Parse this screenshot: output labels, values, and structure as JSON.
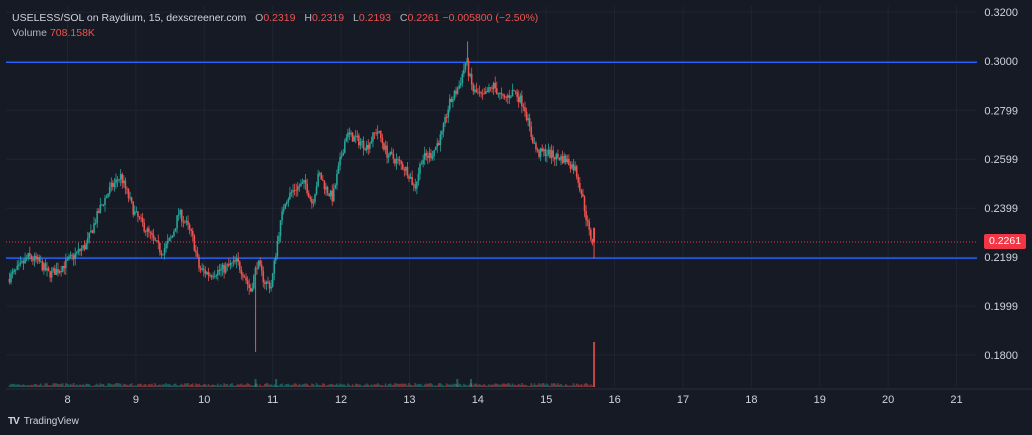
{
  "header": {
    "symbol_line": "USELESS/SOL on Raydium, 15, dexscreener.com",
    "o_label": "O",
    "o_value": "0.2319",
    "h_label": "H",
    "h_value": "0.2319",
    "l_label": "L",
    "l_value": "0.2193",
    "c_label": "C",
    "c_value": "0.2261",
    "change": "−0.005800 (−2.50%)",
    "volume_label": "Volume",
    "volume_value": "708.158K"
  },
  "brand": {
    "logo": "TV",
    "name": "TradingView"
  },
  "colors": {
    "background": "#161a25",
    "up": "#26a69a",
    "down": "#ef5350",
    "level_line": "#2962ff",
    "price_line": "#f23645",
    "grid": "#1f2433",
    "axis_text": "#d1d4dc"
  },
  "chart_data": {
    "type": "candlestick",
    "y_ticks": [
      "0.3200",
      "0.3000",
      "0.2799",
      "0.2599",
      "0.2399",
      "0.2199",
      "0.1999",
      "0.1800"
    ],
    "ylim": [
      0.1685,
      0.3225
    ],
    "x_ticks": [
      "8",
      "9",
      "10",
      "11",
      "12",
      "13",
      "14",
      "15",
      "16",
      "17",
      "18",
      "19",
      "20",
      "21"
    ],
    "xlim": [
      7.1,
      21.3
    ],
    "last_price": "0.2261",
    "horizontal_levels": [
      0.2995,
      0.2195
    ],
    "last_candle": {
      "o": 0.2319,
      "h": 0.2319,
      "l": 0.2193,
      "c": 0.2261
    },
    "close_path": [
      [
        7.15,
        0.211
      ],
      [
        7.3,
        0.215
      ],
      [
        7.45,
        0.22
      ],
      [
        7.6,
        0.218
      ],
      [
        7.75,
        0.213
      ],
      [
        7.9,
        0.215
      ],
      [
        8.1,
        0.22
      ],
      [
        8.3,
        0.225
      ],
      [
        8.5,
        0.24
      ],
      [
        8.65,
        0.248
      ],
      [
        8.8,
        0.253
      ],
      [
        9.0,
        0.238
      ],
      [
        9.2,
        0.23
      ],
      [
        9.4,
        0.222
      ],
      [
        9.55,
        0.228
      ],
      [
        9.65,
        0.238
      ],
      [
        9.75,
        0.234
      ],
      [
        9.85,
        0.228
      ],
      [
        9.95,
        0.215
      ],
      [
        10.1,
        0.213
      ],
      [
        10.3,
        0.215
      ],
      [
        10.5,
        0.218
      ],
      [
        10.6,
        0.213
      ],
      [
        10.7,
        0.206
      ],
      [
        10.8,
        0.218
      ],
      [
        10.9,
        0.21
      ],
      [
        11.0,
        0.208
      ],
      [
        11.1,
        0.228
      ],
      [
        11.2,
        0.243
      ],
      [
        11.35,
        0.248
      ],
      [
        11.5,
        0.25
      ],
      [
        11.6,
        0.242
      ],
      [
        11.7,
        0.254
      ],
      [
        11.8,
        0.248
      ],
      [
        11.9,
        0.244
      ],
      [
        12.0,
        0.258
      ],
      [
        12.1,
        0.27
      ],
      [
        12.25,
        0.268
      ],
      [
        12.4,
        0.265
      ],
      [
        12.55,
        0.272
      ],
      [
        12.7,
        0.262
      ],
      [
        12.85,
        0.259
      ],
      [
        13.0,
        0.255
      ],
      [
        13.1,
        0.248
      ],
      [
        13.2,
        0.26
      ],
      [
        13.35,
        0.262
      ],
      [
        13.5,
        0.27
      ],
      [
        13.6,
        0.282
      ],
      [
        13.75,
        0.29
      ],
      [
        13.85,
        0.3
      ],
      [
        13.95,
        0.288
      ],
      [
        14.1,
        0.285
      ],
      [
        14.25,
        0.29
      ],
      [
        14.4,
        0.284
      ],
      [
        14.55,
        0.288
      ],
      [
        14.7,
        0.282
      ],
      [
        14.8,
        0.27
      ],
      [
        14.9,
        0.262
      ],
      [
        15.0,
        0.263
      ],
      [
        15.15,
        0.261
      ],
      [
        15.3,
        0.26
      ],
      [
        15.45,
        0.256
      ],
      [
        15.55,
        0.245
      ],
      [
        15.65,
        0.23
      ],
      [
        15.7,
        0.2261
      ]
    ],
    "wicks": [
      {
        "x": 10.75,
        "low": 0.1812
      },
      {
        "x": 13.85,
        "high": 0.308
      }
    ],
    "volume_spike_x": 15.7
  }
}
